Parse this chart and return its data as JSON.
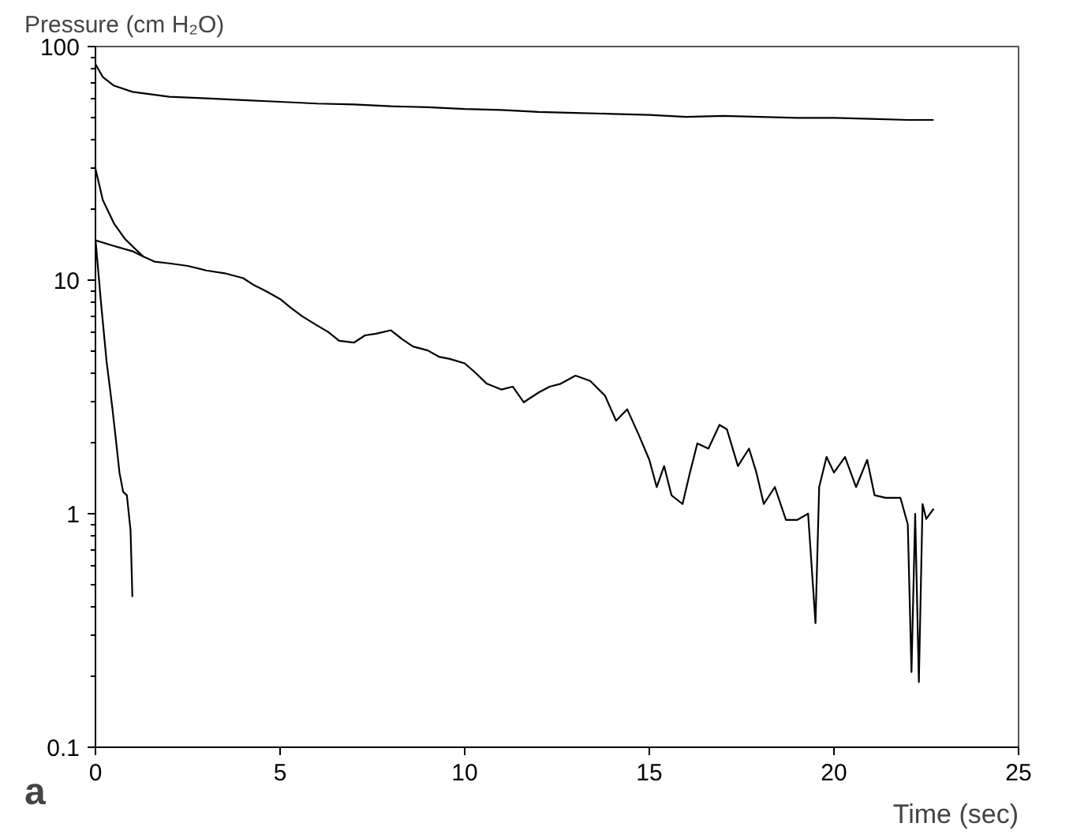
{
  "chart_data": {
    "type": "line",
    "xlabel": "Time (sec)",
    "ylabel": "Pressure (cm H₂O)",
    "annotations": [
      "a"
    ],
    "log": "y",
    "xlim": [
      0,
      25
    ],
    "ylim": [
      0.1,
      100
    ],
    "xticks": [
      0,
      5,
      10,
      15,
      20,
      25
    ],
    "yticks": [
      0.1,
      1,
      10,
      100
    ],
    "grid": false,
    "marker": "none",
    "line_style": "solid",
    "series": [
      {
        "color": "#000000",
        "x": [
          0,
          0.2,
          0.5,
          1,
          2,
          3,
          4,
          5,
          6,
          7,
          8,
          9,
          10,
          11,
          12,
          13,
          14,
          15,
          16,
          17,
          18,
          19,
          20,
          21,
          22,
          22.7
        ],
        "values": [
          84,
          74,
          68,
          64,
          61,
          60,
          59,
          58,
          57,
          56.5,
          55.5,
          55,
          54,
          53.5,
          52.5,
          52,
          51.5,
          51,
          50,
          50.5,
          50,
          49.5,
          49.5,
          49,
          48.5,
          48.5
        ]
      },
      {
        "color": "#000000",
        "x": [
          0,
          0.2,
          0.5,
          0.8,
          1.1,
          1.3
        ],
        "values": [
          30,
          22,
          17.5,
          15,
          13.5,
          12.6
        ]
      },
      {
        "color": "#000000",
        "x": [
          0,
          0.5,
          1,
          1.3,
          1.6,
          2,
          2.5,
          3,
          3.5,
          4,
          4.3,
          4.6,
          5,
          5.3,
          5.6,
          6,
          6.3,
          6.6,
          7,
          7.3,
          7.6,
          8,
          8.3,
          8.6,
          9,
          9.3,
          9.6,
          10,
          10.3,
          10.6,
          11,
          11.3,
          11.6,
          12,
          12.3,
          12.6,
          13,
          13.4,
          13.8,
          14.1,
          14.4,
          14.7,
          15,
          15.2,
          15.4,
          15.6,
          15.9,
          16.1,
          16.3,
          16.6,
          16.9,
          17.1,
          17.4,
          17.7,
          17.9,
          18.1,
          18.4,
          18.7,
          19,
          19.3,
          19.5,
          19.6,
          19.8,
          20,
          20.3,
          20.6,
          20.9,
          21.1,
          21.4,
          21.8,
          22,
          22.1,
          22.2,
          22.3,
          22.4,
          22.5,
          22.7
        ],
        "values": [
          14.8,
          14,
          13.3,
          12.6,
          12,
          11.8,
          11.5,
          11,
          10.7,
          10.2,
          9.5,
          9,
          8.3,
          7.6,
          7,
          6.4,
          6,
          5.5,
          5.4,
          5.8,
          5.9,
          6.1,
          5.6,
          5.2,
          5,
          4.7,
          4.6,
          4.4,
          4.0,
          3.6,
          3.4,
          3.5,
          3.0,
          3.3,
          3.5,
          3.6,
          3.9,
          3.7,
          3.2,
          2.5,
          2.8,
          2.2,
          1.7,
          1.3,
          1.6,
          1.2,
          1.1,
          1.5,
          2.0,
          1.9,
          2.4,
          2.3,
          1.6,
          1.9,
          1.5,
          1.1,
          1.3,
          0.94,
          0.94,
          1.0,
          0.34,
          1.3,
          1.75,
          1.5,
          1.75,
          1.3,
          1.7,
          1.2,
          1.17,
          1.17,
          0.9,
          0.21,
          1.0,
          0.19,
          1.1,
          0.95,
          1.05
        ]
      },
      {
        "color": "#000000",
        "x": [
          0,
          0.15,
          0.3,
          0.45,
          0.55,
          0.65,
          0.75,
          0.85,
          0.95,
          1.0
        ],
        "values": [
          15,
          8,
          4.5,
          2.9,
          2.1,
          1.5,
          1.24,
          1.2,
          0.85,
          0.44
        ]
      }
    ]
  }
}
